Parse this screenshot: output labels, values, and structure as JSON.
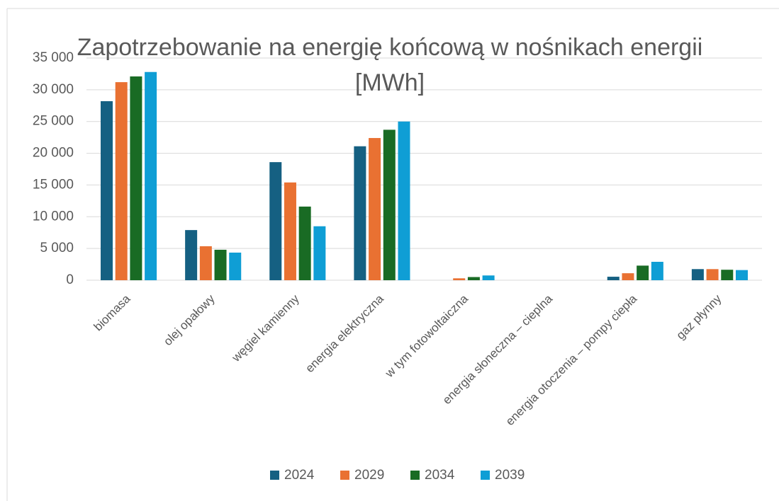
{
  "chart_data": {
    "type": "bar",
    "title": "Zapotrzebowanie na energię końcową w nośnikach energii [MWh]",
    "categories": [
      "biomasa",
      "olej opałowy",
      "węgiel kamienny",
      "energia elektryczna",
      "w tym fotowoltaiczna",
      "energia słoneczna – cieplna",
      "energia otoczenia – pompy ciepła",
      "gaz płynny"
    ],
    "series": [
      {
        "name": "2024",
        "color": "#156082",
        "values": [
          28200,
          7900,
          18600,
          21100,
          0,
          0,
          550,
          1750
        ]
      },
      {
        "name": "2029",
        "color": "#E97132",
        "values": [
          31200,
          5350,
          15400,
          22400,
          300,
          0,
          1100,
          1750
        ]
      },
      {
        "name": "2034",
        "color": "#196B24",
        "values": [
          32100,
          4800,
          11600,
          23700,
          500,
          0,
          2300,
          1650
        ]
      },
      {
        "name": "2039",
        "color": "#0F9ED5",
        "values": [
          32800,
          4350,
          8500,
          25000,
          750,
          0,
          2900,
          1600
        ]
      }
    ],
    "ylim": [
      0,
      35000
    ],
    "yticks": [
      0,
      {
        "value": 5000,
        "label": "5 000"
      },
      {
        "value": 10000,
        "label": "10 000"
      },
      {
        "value": 15000,
        "label": "15 000"
      },
      {
        "value": 20000,
        "label": "20 000"
      },
      {
        "value": 25000,
        "label": "25 000"
      },
      {
        "value": 30000,
        "label": "30 000"
      },
      {
        "value": 35000,
        "label": "35 000"
      }
    ],
    "grid": true,
    "legend": "bottom"
  }
}
